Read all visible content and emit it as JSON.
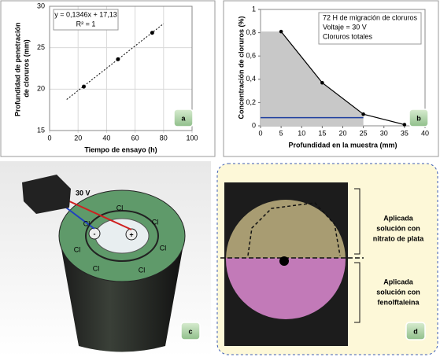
{
  "chart_data": [
    {
      "type": "scatter",
      "panel_label": "a",
      "xlabel": "Tiempo de ensayo (h)",
      "ylabel": "Profundidad de penetración de cloruros (mm)",
      "x": [
        24,
        48,
        72
      ],
      "values": [
        20.3,
        23.6,
        26.8
      ],
      "color": "#000000",
      "xlim": [
        0,
        100
      ],
      "xticks": [
        0,
        20,
        40,
        60,
        80,
        100
      ],
      "ylim": [
        15,
        30
      ],
      "yticks": [
        15,
        20,
        25,
        30
      ],
      "grid": true,
      "trendline": {
        "x": [
          12,
          80
        ],
        "values": [
          18.75,
          27.9
        ],
        "equation": "y = 0,1346x + 17,13",
        "r2": "R² = 1"
      }
    },
    {
      "type": "line",
      "panel_label": "b",
      "xlabel": "Profundidad  en la muestra (mm)",
      "ylabel": "Concentración de cloruros (%)",
      "annotation": [
        "72 H de migración de cloruros",
        "Voltaje = 30 V",
        "Cloruros totales"
      ],
      "x": [
        5,
        15,
        25,
        35
      ],
      "values": [
        0.81,
        0.37,
        0.1,
        0.01
      ],
      "color": "#000000",
      "area_color": "#c8c8c8",
      "xlim": [
        0,
        40
      ],
      "xticks": [
        0,
        5,
        10,
        15,
        20,
        25,
        30,
        35,
        40
      ],
      "ylim": [
        0,
        1
      ],
      "yticks": [
        0,
        {
          "value": 0.2,
          "label": "0,2"
        },
        {
          "value": 0.4,
          "label": "0,4"
        },
        {
          "value": 0.6,
          "label": "0,6"
        },
        {
          "value": 0.8,
          "label": "0,8"
        },
        1
      ],
      "grid": false,
      "reference_line": {
        "value": 0.07,
        "x": [
          0,
          25
        ],
        "color": "#1f3f9f"
      }
    }
  ],
  "illustration": {
    "panel_label": "c",
    "voltage": "30 V",
    "ions": [
      "Cl",
      "Cl",
      "Cl",
      "Cl",
      "Cl",
      "Cl",
      "Cl"
    ],
    "anode": "+",
    "cathode": "-"
  },
  "photo": {
    "panel_label": "d",
    "top_label": [
      "Aplicada",
      "solución con",
      "nitrato de plata"
    ],
    "bottom_label": [
      "Aplicada",
      "solución con",
      "fenolftaleina"
    ]
  }
}
